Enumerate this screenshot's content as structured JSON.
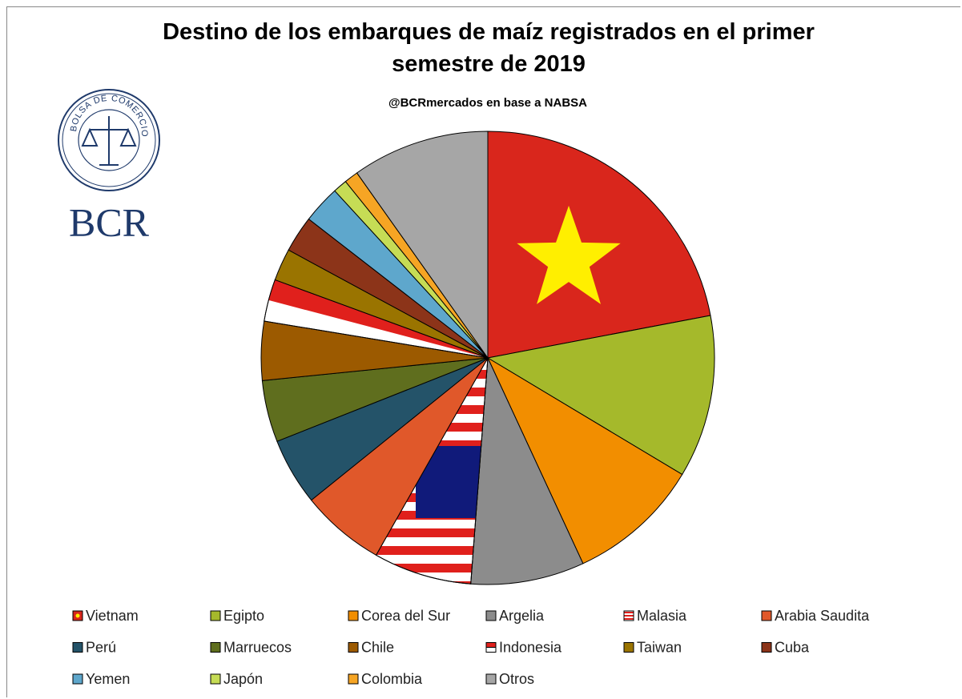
{
  "logo": {
    "seal": "BOLSA DE COMERCIO DE ROSARIO",
    "text": "BCR"
  },
  "chart_data": {
    "type": "pie",
    "title": "Destino de los embarques de maíz registrados en el primer semestre de 2019",
    "subtitle": "@BCRmercados en base a NABSA",
    "categories": [
      "Vietnam",
      "Egipto",
      "Corea del Sur",
      "Argelia",
      "Malasia",
      "Arabia Saudita",
      "Perú",
      "Marruecos",
      "Chile",
      "Indonesia",
      "Taiwan",
      "Cuba",
      "Yemen",
      "Japón",
      "Colombia",
      "Otros"
    ],
    "values": [
      22,
      11.6,
      9.5,
      8.1,
      7,
      6,
      4.8,
      4.4,
      4.2,
      3,
      2.3,
      2.6,
      2.7,
      1,
      1,
      9.8
    ],
    "colors": [
      "#d9261c",
      "#a5b92b",
      "#f28e00",
      "#8c8c8c",
      "#e0201c",
      "#e0582a",
      "#245369",
      "#5f6e1e",
      "#9c5a00",
      "#ffffff",
      "#9a7400",
      "#8c3419",
      "#5ea7cc",
      "#c6dc55",
      "#f6a524",
      "#a6a6a6"
    ],
    "legend": "bottom"
  }
}
